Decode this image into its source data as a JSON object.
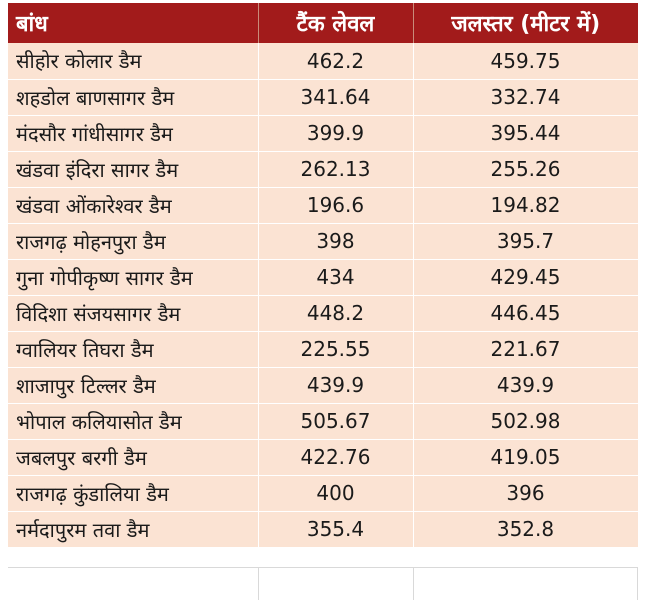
{
  "table": {
    "columns": [
      "बांध",
      "टैंक लेवल",
      "जलस्तर (मीटर में)"
    ],
    "rows": [
      [
        "सीहोर कोलार डैम",
        "462.2",
        "459.75"
      ],
      [
        "शहडोल बाणसागर डैम",
        "341.64",
        "332.74"
      ],
      [
        "मंदसौर गांधीसागर डैम",
        "399.9",
        "395.44"
      ],
      [
        "खंडवा इंदिरा सागर डैम",
        "262.13",
        "255.26"
      ],
      [
        "खंडवा ओंकारेश्वर डैम",
        "196.6",
        "194.82"
      ],
      [
        "राजगढ़ मोहनपुरा डैम",
        "398",
        "395.7"
      ],
      [
        "गुना गोपीकृष्ण सागर डैम",
        "434",
        "429.45"
      ],
      [
        "विदिशा संजयसागर डैम",
        "448.2",
        "446.45"
      ],
      [
        "ग्वालियर तिघरा डैम",
        "225.55",
        "221.67"
      ],
      [
        "शाजापुर टिल्लर डैम",
        "439.9",
        "439.9"
      ],
      [
        "भोपाल कलियासोत डैम",
        "505.67",
        "502.98"
      ],
      [
        "जबलपुर बरगी डैम",
        "422.76",
        "419.05"
      ],
      [
        "राजगढ़ कुंडालिया डैम",
        "400",
        "396"
      ],
      [
        "नर्मदापुरम तवा डैम",
        "355.4",
        "352.8"
      ]
    ]
  },
  "colors": {
    "header_bg": "#a21b1b",
    "header_text": "#ffffff",
    "row_bg": "#fbe3d3"
  }
}
